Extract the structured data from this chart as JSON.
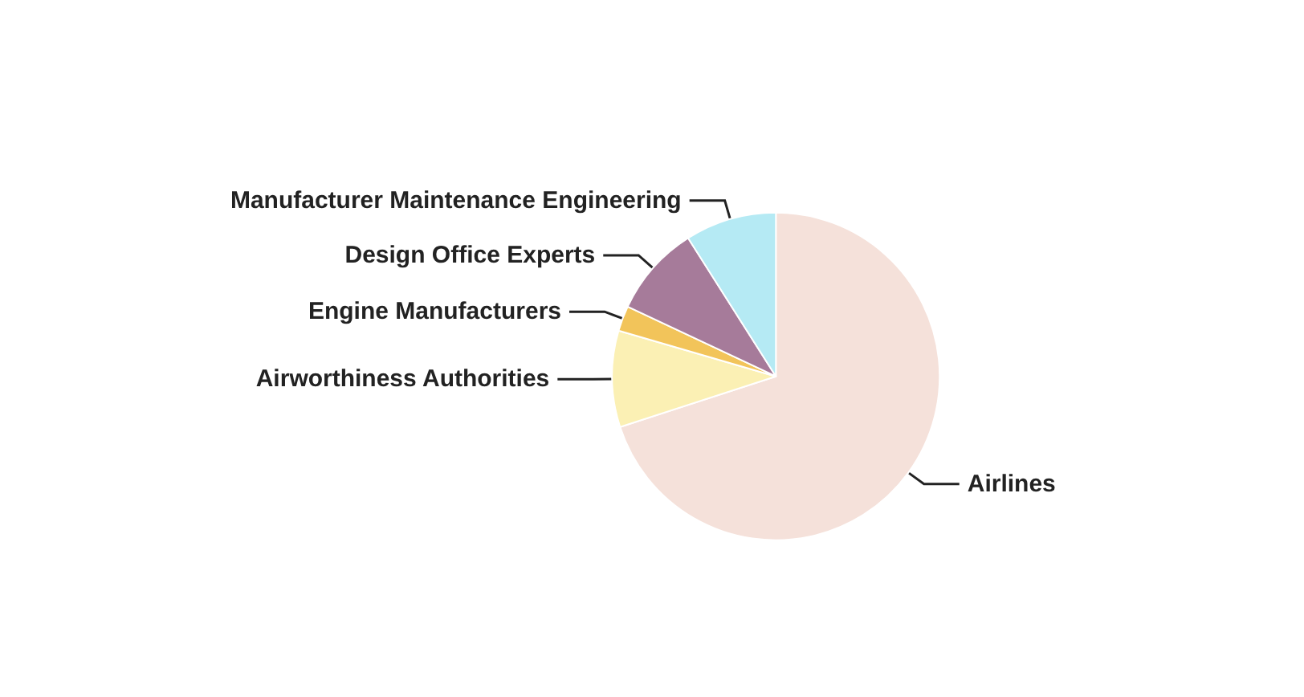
{
  "chart_data": {
    "type": "pie",
    "categories": [
      "Airlines",
      "Airworthiness Authorities",
      "Engine Manufacturers",
      "Design Office Experts",
      "Manufacturer Maintenance Engineering"
    ],
    "values": [
      70,
      9.5,
      2.5,
      9,
      9
    ],
    "colors": [
      "#f5e1da",
      "#fbf0b4",
      "#f2c45a",
      "#a67b9a",
      "#b5eaf4"
    ],
    "legend": false
  }
}
